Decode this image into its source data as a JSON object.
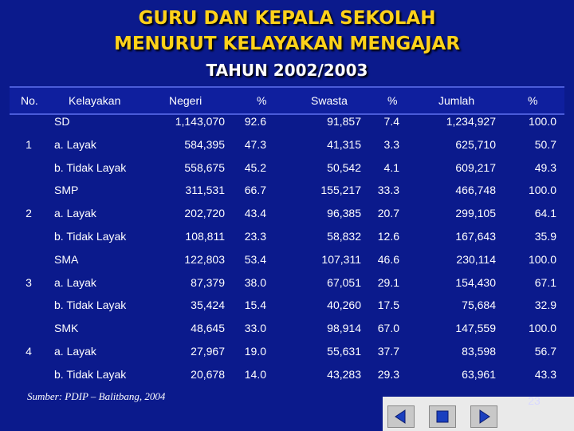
{
  "title_line1": "GURU DAN KEPALA SEKOLAH",
  "title_line2": "MENURUT KELAYAKAN MENGAJAR",
  "subtitle": "TAHUN 2002/2003",
  "headers": {
    "no": "No.",
    "kelayakan": "Kelayakan",
    "negeri": "Negeri",
    "pct1": "%",
    "swasta": "Swasta",
    "pct2": "%",
    "jumlah": "Jumlah",
    "pct3": "%"
  },
  "groups": [
    {
      "no": "1",
      "rows": [
        {
          "label": "SD",
          "negeri": "1,143,070",
          "p1": "92.6",
          "swasta": "91,857",
          "p2": "7.4",
          "jumlah": "1,234,927",
          "p3": "100.0"
        },
        {
          "label": "a. Layak",
          "negeri": "584,395",
          "p1": "47.3",
          "swasta": "41,315",
          "p2": "3.3",
          "jumlah": "625,710",
          "p3": "50.7"
        },
        {
          "label": "b. Tidak Layak",
          "negeri": "558,675",
          "p1": "45.2",
          "swasta": "50,542",
          "p2": "4.1",
          "jumlah": "609,217",
          "p3": "49.3"
        }
      ]
    },
    {
      "no": "2",
      "rows": [
        {
          "label": "SMP",
          "negeri": "311,531",
          "p1": "66.7",
          "swasta": "155,217",
          "p2": "33.3",
          "jumlah": "466,748",
          "p3": "100.0"
        },
        {
          "label": "a. Layak",
          "negeri": "202,720",
          "p1": "43.4",
          "swasta": "96,385",
          "p2": "20.7",
          "jumlah": "299,105",
          "p3": "64.1"
        },
        {
          "label": "b. Tidak Layak",
          "negeri": "108,811",
          "p1": "23.3",
          "swasta": "58,832",
          "p2": "12.6",
          "jumlah": "167,643",
          "p3": "35.9"
        }
      ]
    },
    {
      "no": "3",
      "rows": [
        {
          "label": "SMA",
          "negeri": "122,803",
          "p1": "53.4",
          "swasta": "107,311",
          "p2": "46.6",
          "jumlah": "230,114",
          "p3": "100.0"
        },
        {
          "label": "a. Layak",
          "negeri": "87,379",
          "p1": "38.0",
          "swasta": "67,051",
          "p2": "29.1",
          "jumlah": "154,430",
          "p3": "67.1"
        },
        {
          "label": "b. Tidak Layak",
          "negeri": "35,424",
          "p1": "15.4",
          "swasta": "40,260",
          "p2": "17.5",
          "jumlah": "75,684",
          "p3": "32.9"
        }
      ]
    },
    {
      "no": "4",
      "rows": [
        {
          "label": "SMK",
          "negeri": "48,645",
          "p1": "33.0",
          "swasta": "98,914",
          "p2": "67.0",
          "jumlah": "147,559",
          "p3": "100.0"
        },
        {
          "label": "a. Layak",
          "negeri": "27,967",
          "p1": "19.0",
          "swasta": "55,631",
          "p2": "37.7",
          "jumlah": "83,598",
          "p3": "56.7"
        },
        {
          "label": "b. Tidak Layak",
          "negeri": "20,678",
          "p1": "14.0",
          "swasta": "43,283",
          "p2": "29.3",
          "jumlah": "63,961",
          "p3": "43.3"
        }
      ]
    }
  ],
  "source": "Sumber: PDIP – Balitbang, 2004",
  "page_number": "23",
  "nav": {
    "prev_icon": "triangle-left-icon",
    "home_icon": "square-icon",
    "next_icon": "triangle-right-icon"
  }
}
